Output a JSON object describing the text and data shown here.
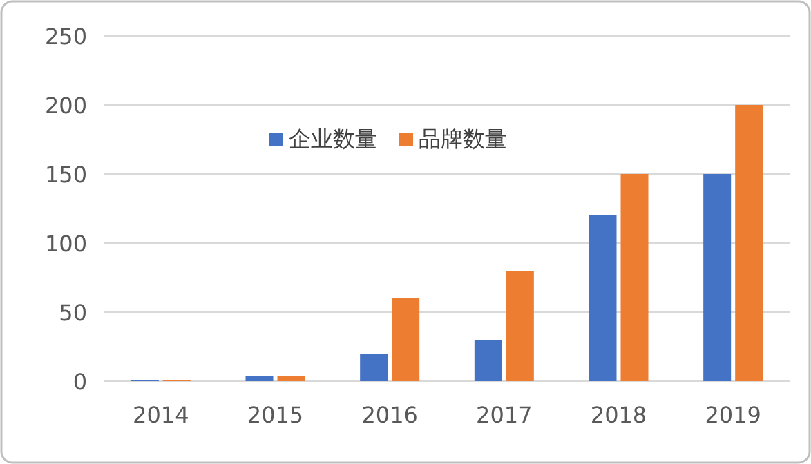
{
  "chart_data": {
    "type": "bar",
    "categories": [
      "2014",
      "2015",
      "2016",
      "2017",
      "2018",
      "2019"
    ],
    "series": [
      {
        "name": "企业数量",
        "color": "#4472c4",
        "values": [
          1,
          4,
          20,
          30,
          120,
          150
        ]
      },
      {
        "name": "品牌数量",
        "color": "#ed7d31",
        "values": [
          1,
          4,
          60,
          80,
          150,
          200
        ]
      }
    ],
    "ylim": [
      0,
      250
    ],
    "yticks": [
      0,
      50,
      100,
      150,
      200,
      250
    ],
    "grid": "y",
    "legend": "top"
  }
}
